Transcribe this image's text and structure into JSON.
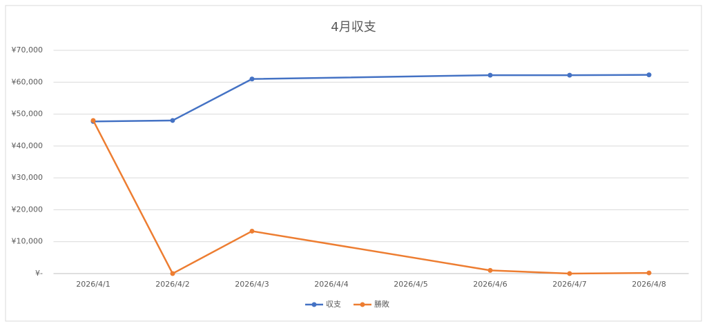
{
  "chart_data": {
    "type": "line",
    "title": "4月収支",
    "categories": [
      "2026/4/1",
      "2026/4/2",
      "2026/4/3",
      "2026/4/4",
      "2026/4/5",
      "2026/4/6",
      "2026/4/7",
      "2026/4/8"
    ],
    "series": [
      {
        "name": "収支",
        "color": "#4472c4",
        "values": [
          47700,
          48000,
          61000,
          null,
          null,
          62200,
          62200,
          62300
        ]
      },
      {
        "name": "勝敗",
        "color": "#ed7d31",
        "values": [
          48000,
          0,
          13300,
          null,
          null,
          1000,
          0,
          200
        ]
      }
    ],
    "ylim": [
      0,
      70000
    ],
    "yticks": [
      {
        "value": 0,
        "label": "¥-"
      },
      {
        "value": 10000,
        "label": "¥10,000"
      },
      {
        "value": 20000,
        "label": "¥20,000"
      },
      {
        "value": 30000,
        "label": "¥30,000"
      },
      {
        "value": 40000,
        "label": "¥40,000"
      },
      {
        "value": 50000,
        "label": "¥50,000"
      },
      {
        "value": 60000,
        "label": "¥60,000"
      },
      {
        "value": 70000,
        "label": "¥70,000"
      }
    ],
    "grid": true,
    "connect_gaps": true,
    "legend": "bottom"
  }
}
